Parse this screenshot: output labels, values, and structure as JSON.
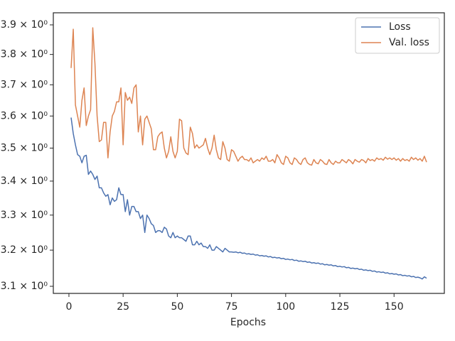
{
  "chart_data": {
    "type": "line",
    "xlabel": "Epochs",
    "log_y": true,
    "legend": "upper right",
    "xlim": [
      -7.2,
      173.2
    ],
    "ylim": [
      3.0807,
      3.9416
    ],
    "xticks": [
      0,
      25,
      50,
      75,
      100,
      125,
      150
    ],
    "yticks": [
      {
        "value": 3.1,
        "label": "3.1 × 10⁰"
      },
      {
        "value": 3.2,
        "label": "3.2 × 10⁰"
      },
      {
        "value": 3.3,
        "label": "3.3 × 10⁰"
      },
      {
        "value": 3.4,
        "label": "3.4 × 10⁰"
      },
      {
        "value": 3.5,
        "label": "3.5 × 10⁰"
      },
      {
        "value": 3.6,
        "label": "3.6 × 10⁰"
      },
      {
        "value": 3.7,
        "label": "3.7 × 10⁰"
      },
      {
        "value": 3.8,
        "label": "3.8 × 10⁰"
      },
      {
        "value": 3.9,
        "label": "3.9 × 10⁰"
      }
    ],
    "x": [
      1,
      2,
      3,
      4,
      5,
      6,
      7,
      8,
      9,
      10,
      11,
      12,
      13,
      14,
      15,
      16,
      17,
      18,
      19,
      20,
      21,
      22,
      23,
      24,
      25,
      26,
      27,
      28,
      29,
      30,
      31,
      32,
      33,
      34,
      35,
      36,
      37,
      38,
      39,
      40,
      41,
      42,
      43,
      44,
      45,
      46,
      47,
      48,
      49,
      50,
      51,
      52,
      53,
      54,
      55,
      56,
      57,
      58,
      59,
      60,
      61,
      62,
      63,
      64,
      65,
      66,
      67,
      68,
      69,
      70,
      71,
      72,
      73,
      74,
      75,
      76,
      77,
      78,
      79,
      80,
      81,
      82,
      83,
      84,
      85,
      86,
      87,
      88,
      89,
      90,
      91,
      92,
      93,
      94,
      95,
      96,
      97,
      98,
      99,
      100,
      101,
      102,
      103,
      104,
      105,
      106,
      107,
      108,
      109,
      110,
      111,
      112,
      113,
      114,
      115,
      116,
      117,
      118,
      119,
      120,
      121,
      122,
      123,
      124,
      125,
      126,
      127,
      128,
      129,
      130,
      131,
      132,
      133,
      134,
      135,
      136,
      137,
      138,
      139,
      140,
      141,
      142,
      143,
      144,
      145,
      146,
      147,
      148,
      149,
      150,
      151,
      152,
      153,
      154,
      155,
      156,
      157,
      158,
      159,
      160,
      161,
      162,
      163,
      164,
      165
    ],
    "series": [
      {
        "name": "Loss",
        "color": "#4c72b0",
        "values": [
          3.595,
          3.545,
          3.51,
          3.48,
          3.475,
          3.455,
          3.475,
          3.478,
          3.42,
          3.43,
          3.42,
          3.405,
          3.415,
          3.38,
          3.38,
          3.365,
          3.355,
          3.36,
          3.33,
          3.35,
          3.34,
          3.345,
          3.38,
          3.36,
          3.36,
          3.31,
          3.345,
          3.3,
          3.325,
          3.325,
          3.31,
          3.31,
          3.29,
          3.3,
          3.25,
          3.3,
          3.29,
          3.275,
          3.27,
          3.25,
          3.255,
          3.255,
          3.25,
          3.265,
          3.26,
          3.24,
          3.235,
          3.25,
          3.235,
          3.24,
          3.235,
          3.235,
          3.23,
          3.225,
          3.24,
          3.24,
          3.215,
          3.215,
          3.225,
          3.215,
          3.22,
          3.21,
          3.21,
          3.205,
          3.215,
          3.2,
          3.2,
          3.21,
          3.205,
          3.2,
          3.195,
          3.205,
          3.2,
          3.195,
          3.195,
          3.194,
          3.195,
          3.1925,
          3.194,
          3.191,
          3.192,
          3.189,
          3.19,
          3.188,
          3.189,
          3.186,
          3.187,
          3.184,
          3.185,
          3.183,
          3.184,
          3.181,
          3.182,
          3.179,
          3.18,
          3.178,
          3.179,
          3.176,
          3.177,
          3.174,
          3.175,
          3.173,
          3.174,
          3.171,
          3.172,
          3.169,
          3.17,
          3.168,
          3.169,
          3.166,
          3.167,
          3.164,
          3.165,
          3.163,
          3.164,
          3.161,
          3.162,
          3.159,
          3.16,
          3.158,
          3.159,
          3.156,
          3.157,
          3.154,
          3.155,
          3.153,
          3.154,
          3.151,
          3.152,
          3.149,
          3.15,
          3.148,
          3.149,
          3.146,
          3.147,
          3.144,
          3.145,
          3.143,
          3.144,
          3.141,
          3.142,
          3.139,
          3.14,
          3.138,
          3.139,
          3.136,
          3.137,
          3.134,
          3.135,
          3.133,
          3.134,
          3.131,
          3.132,
          3.129,
          3.13,
          3.128,
          3.129,
          3.126,
          3.127,
          3.124,
          3.125,
          3.123,
          3.12,
          3.126,
          3.122
        ]
      },
      {
        "name": "Val. loss",
        "color": "#dd8452",
        "values": [
          3.755,
          3.885,
          3.635,
          3.6,
          3.565,
          3.65,
          3.69,
          3.57,
          3.6,
          3.62,
          3.89,
          3.77,
          3.6,
          3.52,
          3.525,
          3.58,
          3.58,
          3.47,
          3.55,
          3.6,
          3.615,
          3.645,
          3.645,
          3.69,
          3.51,
          3.675,
          3.65,
          3.66,
          3.64,
          3.69,
          3.7,
          3.55,
          3.6,
          3.51,
          3.59,
          3.6,
          3.58,
          3.56,
          3.495,
          3.495,
          3.535,
          3.545,
          3.55,
          3.5,
          3.47,
          3.49,
          3.535,
          3.49,
          3.47,
          3.49,
          3.59,
          3.585,
          3.5,
          3.485,
          3.48,
          3.565,
          3.545,
          3.5,
          3.51,
          3.5,
          3.505,
          3.51,
          3.53,
          3.5,
          3.48,
          3.5,
          3.54,
          3.495,
          3.47,
          3.465,
          3.52,
          3.5,
          3.465,
          3.46,
          3.495,
          3.49,
          3.475,
          3.46,
          3.47,
          3.475,
          3.465,
          3.465,
          3.46,
          3.47,
          3.455,
          3.46,
          3.465,
          3.46,
          3.47,
          3.465,
          3.475,
          3.46,
          3.46,
          3.465,
          3.455,
          3.48,
          3.47,
          3.455,
          3.45,
          3.475,
          3.47,
          3.455,
          3.45,
          3.47,
          3.465,
          3.455,
          3.45,
          3.465,
          3.47,
          3.455,
          3.45,
          3.448,
          3.465,
          3.455,
          3.452,
          3.465,
          3.46,
          3.452,
          3.45,
          3.465,
          3.455,
          3.45,
          3.46,
          3.455,
          3.455,
          3.465,
          3.46,
          3.455,
          3.465,
          3.46,
          3.452,
          3.465,
          3.46,
          3.457,
          3.465,
          3.462,
          3.455,
          3.468,
          3.462,
          3.465,
          3.46,
          3.47,
          3.465,
          3.468,
          3.463,
          3.472,
          3.466,
          3.47,
          3.465,
          3.47,
          3.463,
          3.468,
          3.46,
          3.468,
          3.462,
          3.465,
          3.46,
          3.472,
          3.465,
          3.47,
          3.463,
          3.468,
          3.46,
          3.475,
          3.457
        ]
      }
    ]
  }
}
